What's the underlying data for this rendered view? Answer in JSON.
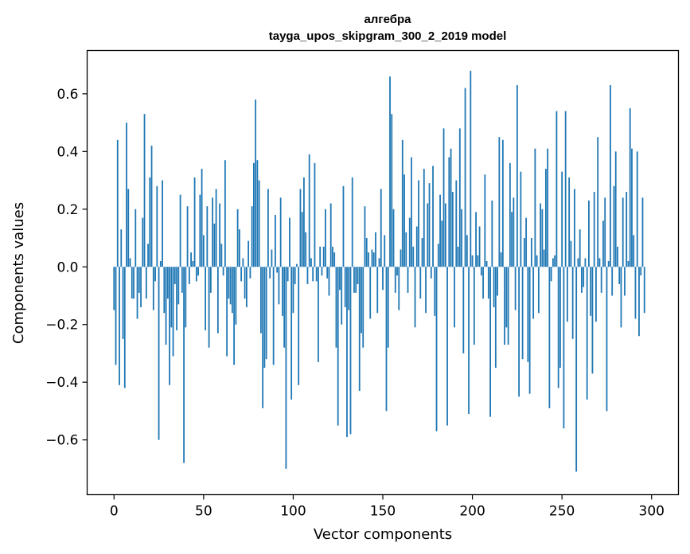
{
  "chart_data": {
    "type": "bar",
    "title": "алгебра",
    "subtitle": "tayga_upos_skipgram_300_2_2019 model",
    "xlabel": "Vector components",
    "ylabel": "Components values",
    "xlim": [
      -15,
      315
    ],
    "ylim": [
      -0.79,
      0.75
    ],
    "xticks": [
      0,
      50,
      100,
      150,
      200,
      250,
      300
    ],
    "yticks": [
      -0.6,
      -0.4,
      -0.2,
      0.0,
      0.2,
      0.4,
      0.6
    ],
    "ytick_labels": [
      "−0.6",
      "−0.4",
      "−0.2",
      "0.0",
      "0.2",
      "0.4",
      "0.6"
    ],
    "grid": false,
    "color": "#1f77b4",
    "values": [
      -0.15,
      -0.34,
      0.44,
      -0.41,
      0.13,
      -0.25,
      -0.42,
      0.5,
      0.27,
      0.03,
      -0.11,
      -0.11,
      0.2,
      -0.18,
      -0.09,
      -0.14,
      0.17,
      0.53,
      -0.11,
      0.08,
      0.31,
      0.42,
      -0.15,
      -0.05,
      0.28,
      -0.6,
      0.02,
      0.3,
      -0.16,
      -0.27,
      -0.11,
      -0.41,
      -0.21,
      -0.31,
      -0.06,
      -0.22,
      -0.13,
      0.25,
      -0.09,
      -0.68,
      -0.21,
      0.21,
      -0.06,
      0.05,
      0.02,
      0.31,
      -0.05,
      -0.03,
      0.25,
      0.34,
      0.11,
      -0.22,
      0.21,
      -0.28,
      -0.09,
      0.24,
      0.15,
      0.27,
      -0.23,
      0.22,
      0.08,
      -0.03,
      0.37,
      -0.31,
      -0.11,
      -0.13,
      -0.16,
      -0.34,
      -0.2,
      0.2,
      0.13,
      -0.05,
      0.03,
      -0.11,
      -0.14,
      0.09,
      -0.04,
      0.21,
      0.36,
      0.58,
      0.37,
      0.3,
      -0.23,
      -0.49,
      -0.35,
      -0.32,
      0.27,
      -0.04,
      0.06,
      -0.34,
      0.18,
      -0.02,
      -0.13,
      0.24,
      -0.17,
      -0.28,
      -0.7,
      -0.05,
      0.17,
      -0.46,
      -0.16,
      -0.06,
      0.01,
      -0.41,
      0.27,
      0.19,
      0.31,
      0.12,
      -0.06,
      0.39,
      0.03,
      -0.05,
      0.36,
      -0.05,
      -0.33,
      0.07,
      -0.03,
      0.07,
      0.2,
      -0.04,
      -0.1,
      0.22,
      0.07,
      0.05,
      -0.28,
      -0.55,
      -0.08,
      -0.2,
      0.28,
      -0.14,
      -0.59,
      -0.15,
      -0.58,
      0.31,
      -0.09,
      -0.09,
      -0.06,
      -0.43,
      -0.23,
      -0.28,
      0.21,
      0.1,
      0.05,
      -0.18,
      0.06,
      0.05,
      0.12,
      -0.16,
      0.03,
      0.27,
      -0.08,
      0.11,
      -0.5,
      -0.28,
      0.66,
      0.53,
      0.2,
      -0.09,
      -0.03,
      -0.15,
      0.06,
      0.44,
      0.32,
      0.12,
      -0.09,
      0.17,
      0.38,
      0.07,
      -0.21,
      0.14,
      0.3,
      -0.11,
      0.1,
      0.34,
      -0.16,
      0.22,
      0.29,
      -0.04,
      0.35,
      -0.17,
      -0.57,
      0.08,
      0.25,
      0.16,
      0.48,
      0.22,
      -0.55,
      0.38,
      0.41,
      0.26,
      -0.21,
      0.3,
      0.07,
      0.48,
      0.2,
      -0.3,
      0.62,
      0.11,
      -0.51,
      0.68,
      0.04,
      -0.27,
      0.19,
      0.04,
      0.14,
      -0.03,
      -0.11,
      0.32,
      0.02,
      -0.11,
      -0.52,
      0.23,
      -0.14,
      -0.35,
      -0.1,
      0.45,
      0.05,
      0.44,
      -0.27,
      -0.21,
      -0.27,
      0.36,
      0.19,
      0.24,
      -0.15,
      0.63,
      -0.45,
      0.33,
      -0.32,
      0.1,
      0.17,
      -0.33,
      -0.44,
      0.1,
      -0.18,
      0.41,
      0.04,
      -0.16,
      0.22,
      0.2,
      0.06,
      0.34,
      0.41,
      -0.49,
      -0.05,
      0.03,
      0.04,
      0.54,
      -0.42,
      -0.35,
      0.33,
      -0.56,
      0.54,
      -0.19,
      0.31,
      0.09,
      -0.25,
      0.27,
      -0.71,
      0.03,
      0.13,
      -0.09,
      -0.07,
      0.03,
      -0.46,
      0.23,
      -0.17,
      -0.37,
      0.26,
      -0.19,
      0.45,
      0.03,
      -0.09,
      0.16,
      0.24,
      -0.5,
      0.02,
      0.63,
      -0.1,
      0.28,
      0.4,
      0.07,
      -0.06,
      -0.21,
      0.24,
      -0.1,
      0.26,
      0.02,
      0.55,
      0.41,
      0.11,
      -0.18,
      0.4,
      -0.24,
      -0.03,
      0.24,
      -0.16
    ]
  }
}
